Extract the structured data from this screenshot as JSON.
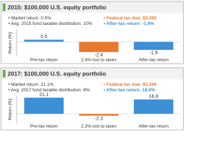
{
  "chart_data": [
    {
      "type": "bar",
      "title": "2015: $100,000 U.S. equity portfolio",
      "y_label": "Return (%)",
      "notes": [
        {
          "text": "• Market return: 0.5%",
          "color": "#333333"
        },
        {
          "text": "• Avg. 2015 fund taxable distribution: 10%",
          "color": "#333333"
        },
        {
          "text": "• Federal tax due: $2,392",
          "color": "#e8792b"
        },
        {
          "text": "• After-tax return: -1.9%",
          "color": "#3d8fd6"
        }
      ],
      "categories": [
        "Pre-tax return",
        "2.4% lost to taxes",
        "After-tax return"
      ],
      "values": [
        0.5,
        -2.4,
        -1.9
      ],
      "colors": [
        "#3d8fd6",
        "#e8792b",
        "#3d8fd6"
      ],
      "ylim": [
        -3.5,
        3
      ]
    },
    {
      "type": "bar",
      "title": "2017: $100,000 U.S. equity portfolio",
      "y_label": "Return (%)",
      "notes": [
        {
          "text": "• Market return: 21.1%",
          "color": "#333333"
        },
        {
          "text": "• Avg. 2017 fund taxable distribution: 8%",
          "color": "#333333"
        },
        {
          "text": "• Federal tax due: $2,306",
          "color": "#e8792b"
        },
        {
          "text": "• After-tax return: 18.8%",
          "color": "#3d8fd6"
        }
      ],
      "categories": [
        "Pre-tax return",
        "2.3% lost to taxes",
        "After-tax return"
      ],
      "values": [
        21.1,
        -2.3,
        18.8
      ],
      "colors": [
        "#3d8fd6",
        "#e8792b",
        "#3d8fd6"
      ],
      "ylim": [
        -12,
        24
      ]
    }
  ]
}
